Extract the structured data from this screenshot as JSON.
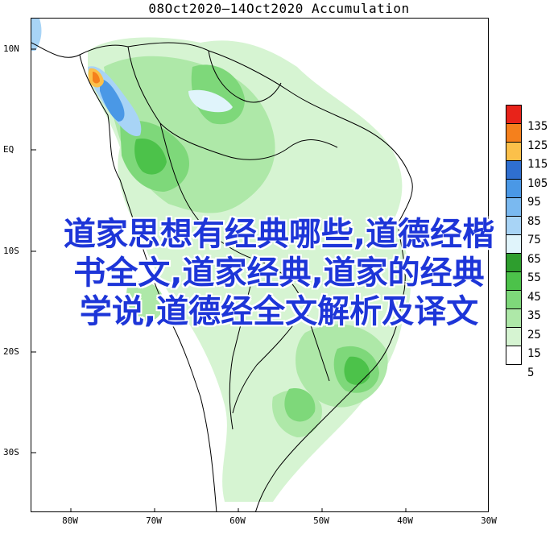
{
  "title": "08Oct2020—14Oct2020 Accumulation",
  "lat_labels": [
    "10N",
    "EQ",
    "10S",
    "20S",
    "30S"
  ],
  "lon_labels": [
    "80W",
    "70W",
    "60W",
    "50W",
    "40W",
    "30W"
  ],
  "legend": {
    "values": [
      "135",
      "125",
      "115",
      "105",
      "95",
      "85",
      "75",
      "65",
      "55",
      "45",
      "35",
      "25",
      "15",
      "5"
    ],
    "colors": [
      "#e8231a",
      "#f5801c",
      "#fbc04a",
      "#2f6fd0",
      "#4a98e6",
      "#7ab9f0",
      "#a8d4f6",
      "#e0f4fb",
      "#2e9e2e",
      "#4cc24a",
      "#7ed87a",
      "#aee8a8",
      "#d6f4d2",
      "#ffffff"
    ]
  },
  "overlay_text": {
    "line1": "道家思想有经典哪些,道德经楷",
    "line2": "书全文,道家经典,道家的经典",
    "line3": "学说,道德经全文解析及译文"
  }
}
